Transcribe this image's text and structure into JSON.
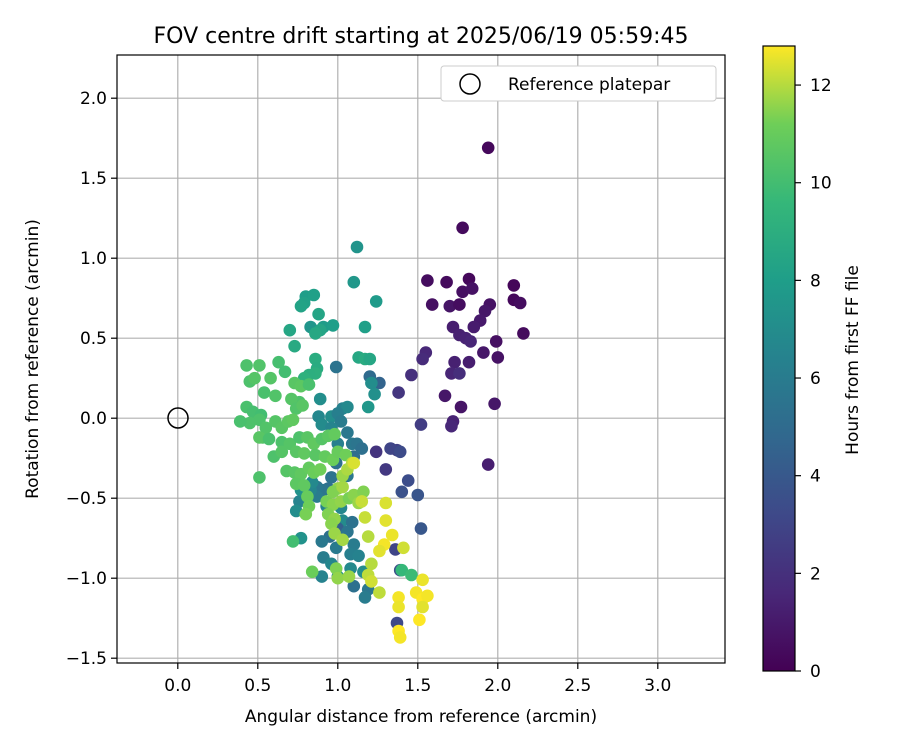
{
  "chart_data": {
    "type": "scatter",
    "title": "FOV centre drift starting at 2025/06/19 05:59:45",
    "xlabel": "Angular distance from reference (arcmin)",
    "ylabel": "Rotation from reference (arcmin)",
    "xlim": [
      -0.38,
      3.42
    ],
    "ylim": [
      -1.53,
      2.27
    ],
    "xticks": [
      "0.0",
      "0.5",
      "1.0",
      "1.5",
      "2.0",
      "2.5",
      "3.0"
    ],
    "yticks": [
      "−1.5",
      "−1.0",
      "−0.5",
      "0.0",
      "0.5",
      "1.0",
      "1.5",
      "2.0"
    ],
    "grid": true,
    "legend": {
      "location": "upper right",
      "entries": [
        "Reference platepar"
      ]
    },
    "colorbar": {
      "label": "Hours from first FF file",
      "colormap": "viridis",
      "range": [
        0,
        12.8
      ],
      "ticks": [
        "0",
        "2",
        "4",
        "6",
        "8",
        "10",
        "12"
      ]
    },
    "reference": {
      "x": 0.0,
      "y": 0.0
    },
    "points": [
      [
        1.94,
        1.69,
        0.3
      ],
      [
        1.78,
        1.19,
        0.4
      ],
      [
        1.56,
        0.86,
        0.5
      ],
      [
        1.68,
        0.85,
        0.4
      ],
      [
        1.82,
        0.87,
        0.3
      ],
      [
        1.78,
        0.79,
        0.6
      ],
      [
        1.84,
        0.81,
        0.7
      ],
      [
        2.1,
        0.83,
        0.2
      ],
      [
        2.1,
        0.74,
        0.3
      ],
      [
        2.14,
        0.72,
        0.5
      ],
      [
        1.59,
        0.71,
        0.6
      ],
      [
        1.7,
        0.7,
        0.8
      ],
      [
        1.76,
        0.71,
        0.5
      ],
      [
        1.95,
        0.71,
        0.7
      ],
      [
        1.92,
        0.67,
        0.9
      ],
      [
        1.89,
        0.61,
        1.0
      ],
      [
        1.85,
        0.57,
        1.1
      ],
      [
        1.72,
        0.57,
        1.2
      ],
      [
        1.76,
        0.52,
        1.3
      ],
      [
        1.99,
        0.48,
        0.6
      ],
      [
        1.8,
        0.5,
        1.4
      ],
      [
        2.16,
        0.53,
        0.4
      ],
      [
        1.83,
        0.48,
        1.5
      ],
      [
        1.91,
        0.41,
        0.9
      ],
      [
        2.0,
        0.38,
        0.7
      ],
      [
        1.55,
        0.41,
        1.6
      ],
      [
        1.53,
        0.37,
        1.8
      ],
      [
        1.73,
        0.35,
        1.3
      ],
      [
        1.82,
        0.35,
        1.2
      ],
      [
        1.71,
        0.28,
        1.5
      ],
      [
        1.76,
        0.28,
        1.9
      ],
      [
        1.46,
        0.27,
        2.0
      ],
      [
        1.38,
        0.16,
        2.3
      ],
      [
        1.67,
        0.14,
        0.9
      ],
      [
        1.77,
        0.07,
        0.8
      ],
      [
        1.98,
        0.09,
        0.9
      ],
      [
        1.72,
        -0.02,
        1.4
      ],
      [
        1.71,
        -0.05,
        1.6
      ],
      [
        1.52,
        -0.04,
        2.6
      ],
      [
        1.94,
        -0.29,
        1.2
      ],
      [
        1.37,
        -0.2,
        2.8
      ],
      [
        1.3,
        -0.32,
        2.4
      ],
      [
        1.24,
        -0.21,
        2.2
      ],
      [
        1.33,
        -0.19,
        3.0
      ],
      [
        1.39,
        -0.21,
        3.3
      ],
      [
        1.44,
        -0.39,
        3.4
      ],
      [
        1.4,
        -0.46,
        3.6
      ],
      [
        1.5,
        -0.48,
        3.8
      ],
      [
        1.52,
        -0.69,
        3.9
      ],
      [
        1.36,
        -0.82,
        3.0
      ],
      [
        1.39,
        -0.95,
        3.5
      ],
      [
        1.37,
        -1.28,
        3.2
      ],
      [
        1.12,
        1.07,
        7.4
      ],
      [
        1.1,
        0.85,
        7.6
      ],
      [
        1.24,
        0.73,
        7.8
      ],
      [
        0.8,
        0.76,
        8.0
      ],
      [
        0.85,
        0.77,
        8.1
      ],
      [
        0.79,
        0.72,
        8.2
      ],
      [
        0.77,
        0.7,
        8.3
      ],
      [
        0.88,
        0.65,
        8.4
      ],
      [
        0.83,
        0.57,
        7.5
      ],
      [
        0.91,
        0.57,
        7.9
      ],
      [
        0.97,
        0.58,
        8.0
      ],
      [
        0.89,
        0.55,
        8.4
      ],
      [
        0.86,
        0.53,
        8.6
      ],
      [
        0.7,
        0.55,
        8.5
      ],
      [
        1.17,
        0.57,
        8.1
      ],
      [
        0.73,
        0.45,
        8.7
      ],
      [
        1.13,
        0.38,
        8.6
      ],
      [
        1.17,
        0.37,
        8.8
      ],
      [
        1.2,
        0.37,
        8.5
      ],
      [
        0.86,
        0.37,
        8.9
      ],
      [
        0.87,
        0.31,
        8.8
      ],
      [
        0.86,
        0.28,
        9.1
      ],
      [
        0.82,
        0.27,
        9.0
      ],
      [
        0.79,
        0.25,
        9.2
      ],
      [
        0.99,
        0.32,
        5.5
      ],
      [
        1.2,
        0.26,
        5.0
      ],
      [
        1.26,
        0.22,
        4.6
      ],
      [
        1.23,
        0.15,
        7.2
      ],
      [
        1.19,
        0.07,
        7.6
      ],
      [
        1.03,
        0.06,
        6.4
      ],
      [
        1.06,
        0.07,
        6.8
      ],
      [
        1.21,
        0.22,
        7.0
      ],
      [
        0.89,
        0.12,
        7.1
      ],
      [
        0.88,
        0.01,
        6.7
      ],
      [
        0.9,
        -0.04,
        6.9
      ],
      [
        0.96,
        0.01,
        7.0
      ],
      [
        1.0,
        0.03,
        6.2
      ],
      [
        1.02,
        -0.02,
        6.0
      ],
      [
        0.96,
        -0.06,
        6.5
      ],
      [
        1.06,
        -0.09,
        5.8
      ],
      [
        1.0,
        -0.16,
        6.2
      ],
      [
        1.09,
        -0.16,
        5.8
      ],
      [
        1.12,
        -0.16,
        5.6
      ],
      [
        1.15,
        -0.19,
        5.3
      ],
      [
        1.1,
        -0.24,
        5.1
      ],
      [
        0.99,
        -0.28,
        5.3
      ],
      [
        1.06,
        -0.36,
        5.7
      ],
      [
        0.96,
        -0.37,
        5.5
      ],
      [
        0.94,
        -0.44,
        5.3
      ],
      [
        0.91,
        -0.45,
        5.6
      ],
      [
        0.87,
        -0.43,
        5.8
      ],
      [
        0.87,
        -0.49,
        6.0
      ],
      [
        0.93,
        -0.55,
        6.4
      ],
      [
        1.02,
        -0.56,
        6.7
      ],
      [
        1.03,
        -0.64,
        6.9
      ],
      [
        1.09,
        -0.65,
        5.4
      ],
      [
        1.0,
        -0.69,
        4.4
      ],
      [
        1.06,
        -0.71,
        5.6
      ],
      [
        0.95,
        -0.74,
        5.2
      ],
      [
        0.9,
        -0.77,
        5.8
      ],
      [
        0.99,
        -0.81,
        5.9
      ],
      [
        1.1,
        -0.79,
        6.0
      ],
      [
        1.08,
        -0.85,
        6.2
      ],
      [
        1.13,
        -0.86,
        6.4
      ],
      [
        0.91,
        -0.87,
        6.1
      ],
      [
        0.96,
        -0.91,
        6.6
      ],
      [
        1.08,
        -0.94,
        6.8
      ],
      [
        1.16,
        -0.96,
        7.0
      ],
      [
        1.0,
        -0.99,
        7.2
      ],
      [
        0.9,
        -0.99,
        6.4
      ],
      [
        1.1,
        -1.05,
        5.3
      ],
      [
        1.19,
        -1.07,
        5.7
      ],
      [
        1.17,
        -1.12,
        6.0
      ],
      [
        0.76,
        -0.52,
        6.5
      ],
      [
        0.74,
        -0.58,
        7.0
      ],
      [
        0.77,
        -0.75,
        7.3
      ],
      [
        0.83,
        -0.45,
        6.6
      ],
      [
        0.84,
        -0.4,
        6.8
      ],
      [
        0.77,
        -0.45,
        7.3
      ],
      [
        1.4,
        -0.95,
        9.6
      ],
      [
        1.46,
        -0.98,
        9.8
      ],
      [
        0.43,
        0.33,
        10.3
      ],
      [
        0.51,
        0.33,
        10.4
      ],
      [
        0.58,
        0.25,
        10.5
      ],
      [
        0.63,
        0.35,
        10.1
      ],
      [
        0.67,
        0.29,
        10.0
      ],
      [
        0.45,
        0.23,
        10.3
      ],
      [
        0.48,
        0.25,
        10.5
      ],
      [
        0.54,
        0.16,
        10.2
      ],
      [
        0.61,
        0.14,
        10.4
      ],
      [
        0.73,
        0.22,
        10.6
      ],
      [
        0.77,
        0.2,
        10.7
      ],
      [
        0.82,
        0.21,
        10.2
      ],
      [
        0.76,
        0.1,
        10.3
      ],
      [
        0.71,
        0.12,
        10.5
      ],
      [
        0.74,
        0.06,
        10.4
      ],
      [
        0.78,
        0.08,
        10.6
      ],
      [
        0.43,
        0.07,
        10.2
      ],
      [
        0.47,
        0.04,
        10.1
      ],
      [
        0.52,
        0.02,
        10.0
      ],
      [
        0.51,
        -0.01,
        10.3
      ],
      [
        0.45,
        -0.03,
        10.3
      ],
      [
        0.39,
        -0.02,
        10.2
      ],
      [
        0.55,
        -0.06,
        10.4
      ],
      [
        0.61,
        -0.02,
        10.5
      ],
      [
        0.65,
        -0.06,
        10.6
      ],
      [
        0.69,
        -0.02,
        10.7
      ],
      [
        0.72,
        -0.01,
        10.8
      ],
      [
        0.53,
        -0.12,
        10.4
      ],
      [
        0.51,
        -0.12,
        10.6
      ],
      [
        0.57,
        -0.13,
        10.2
      ],
      [
        0.65,
        -0.15,
        10.3
      ],
      [
        0.7,
        -0.16,
        10.5
      ],
      [
        0.76,
        -0.12,
        10.3
      ],
      [
        0.81,
        -0.12,
        10.6
      ],
      [
        0.85,
        -0.16,
        10.8
      ],
      [
        0.9,
        -0.13,
        10.5
      ],
      [
        0.94,
        -0.11,
        10.7
      ],
      [
        0.98,
        -0.1,
        10.9
      ],
      [
        0.6,
        -0.24,
        10.3
      ],
      [
        0.65,
        -0.21,
        10.5
      ],
      [
        0.74,
        -0.21,
        10.6
      ],
      [
        0.79,
        -0.22,
        10.8
      ],
      [
        0.86,
        -0.23,
        10.6
      ],
      [
        0.92,
        -0.24,
        10.9
      ],
      [
        0.97,
        -0.26,
        11.1
      ],
      [
        1.0,
        -0.21,
        11.0
      ],
      [
        1.05,
        -0.23,
        11.2
      ],
      [
        0.68,
        -0.33,
        10.5
      ],
      [
        0.73,
        -0.34,
        10.6
      ],
      [
        0.77,
        -0.35,
        10.8
      ],
      [
        0.82,
        -0.31,
        10.9
      ],
      [
        0.85,
        -0.34,
        11.1
      ],
      [
        0.89,
        -0.32,
        11.2
      ],
      [
        0.74,
        -0.41,
        10.7
      ],
      [
        0.79,
        -0.42,
        10.8
      ],
      [
        0.81,
        -0.49,
        11.0
      ],
      [
        0.82,
        -0.55,
        11.2
      ],
      [
        0.8,
        -0.6,
        11.3
      ],
      [
        0.51,
        -0.37,
        10.3
      ],
      [
        0.93,
        -0.52,
        11.3
      ],
      [
        0.97,
        -0.54,
        11.5
      ],
      [
        1.02,
        -0.52,
        11.6
      ],
      [
        1.07,
        -0.5,
        11.3
      ],
      [
        1.1,
        -0.48,
        11.5
      ],
      [
        1.13,
        -0.53,
        11.7
      ],
      [
        1.16,
        -0.46,
        11.4
      ],
      [
        1.0,
        -0.44,
        11.6
      ],
      [
        0.97,
        -0.46,
        11.4
      ],
      [
        1.03,
        -0.43,
        11.8
      ],
      [
        1.03,
        -0.36,
        11.7
      ],
      [
        1.06,
        -0.32,
        11.9
      ],
      [
        1.09,
        -0.28,
        12.0
      ],
      [
        0.94,
        -0.6,
        11.4
      ],
      [
        0.98,
        -0.63,
        11.6
      ],
      [
        0.96,
        -0.66,
        11.5
      ],
      [
        0.98,
        -0.72,
        11.7
      ],
      [
        1.03,
        -0.76,
        11.8
      ],
      [
        0.72,
        -0.77,
        10.0
      ],
      [
        0.84,
        -0.96,
        11.1
      ],
      [
        0.99,
        -0.94,
        11.4
      ],
      [
        1.0,
        -1.0,
        11.6
      ],
      [
        1.07,
        -0.99,
        11.7
      ],
      [
        1.21,
        -0.91,
        12.0
      ],
      [
        1.19,
        -0.98,
        12.1
      ],
      [
        1.21,
        -1.02,
        12.3
      ],
      [
        1.26,
        -1.09,
        12.1
      ],
      [
        1.17,
        -0.62,
        12.2
      ],
      [
        1.19,
        -0.74,
        12.0
      ],
      [
        1.3,
        -0.53,
        12.4
      ],
      [
        1.3,
        -0.64,
        12.5
      ],
      [
        1.34,
        -0.73,
        12.6
      ],
      [
        1.29,
        -0.79,
        12.7
      ],
      [
        1.26,
        -0.83,
        12.5
      ],
      [
        1.41,
        -0.81,
        12.3
      ],
      [
        1.38,
        -1.12,
        12.7
      ],
      [
        1.38,
        -1.18,
        12.6
      ],
      [
        1.49,
        -1.09,
        12.7
      ],
      [
        1.53,
        -1.13,
        12.8
      ],
      [
        1.56,
        -1.11,
        12.7
      ],
      [
        1.53,
        -1.01,
        12.6
      ],
      [
        1.51,
        -1.26,
        12.8
      ],
      [
        1.38,
        -1.33,
        12.8
      ],
      [
        1.39,
        -1.37,
        12.7
      ],
      [
        1.53,
        -1.18,
        12.5
      ],
      [
        1.1,
        -0.28,
        12.4
      ],
      [
        1.15,
        -0.52,
        12.2
      ]
    ]
  }
}
